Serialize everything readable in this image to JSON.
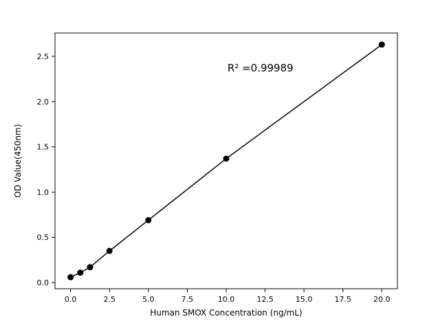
{
  "chart_data": {
    "type": "scatter",
    "title": "",
    "xlabel": "Human SMOX Concentration (ng/mL)",
    "ylabel": "OD Value(450nm)",
    "annotation": "R² =0.99989",
    "x": [
      0,
      0.625,
      1.25,
      2.5,
      5,
      10,
      20
    ],
    "y": [
      0.06,
      0.11,
      0.17,
      0.35,
      0.69,
      1.37,
      2.63
    ],
    "series_name": "Standard curve",
    "line": true,
    "marker": "circle",
    "marker_color": "#000000",
    "line_color": "#000000",
    "xlim": [
      -1,
      21
    ],
    "ylim": [
      -0.068,
      2.758
    ],
    "xticks": [
      0.0,
      2.5,
      5.0,
      7.5,
      10.0,
      12.5,
      15.0,
      17.5,
      20.0
    ],
    "xtick_labels": [
      "0.0",
      "2.5",
      "5.0",
      "7.5",
      "10.0",
      "12.5",
      "15.0",
      "17.5",
      "20.0"
    ],
    "yticks": [
      0.0,
      0.5,
      1.0,
      1.5,
      2.0,
      2.5
    ],
    "ytick_labels": [
      "0.0",
      "0.5",
      "1.0",
      "1.5",
      "2.0",
      "2.5"
    ],
    "grid": false,
    "legend": "none",
    "background": "#ffffff"
  }
}
